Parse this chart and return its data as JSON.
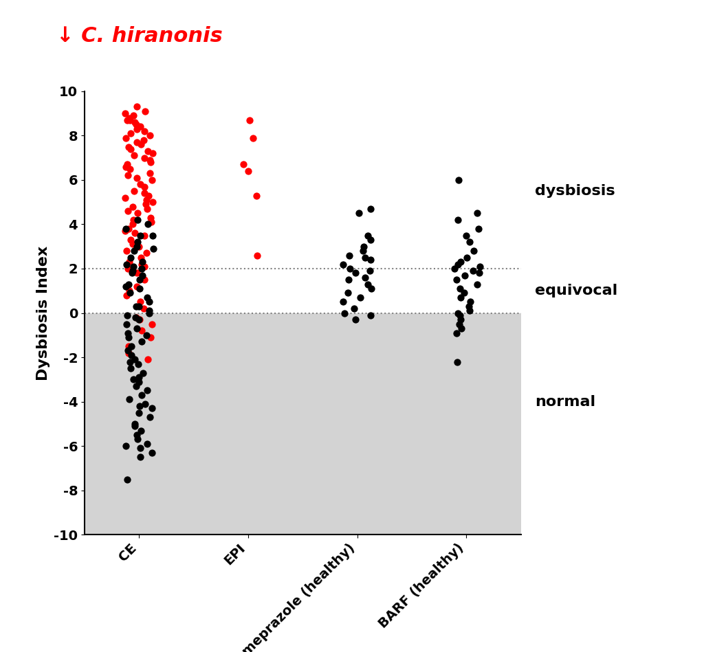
{
  "title": "↓ C. hiranonis",
  "title_color": "#ff0000",
  "ylabel": "Dysbiosis Index",
  "categories": [
    "CE",
    "EPI",
    "omeprazole (healthy)",
    "BARF (healthy)"
  ],
  "background_color": "#d3d3d3",
  "ylim": [
    -10,
    10
  ],
  "CE_red": [
    9.3,
    9.1,
    9.0,
    8.9,
    8.8,
    8.7,
    8.7,
    8.6,
    8.5,
    8.4,
    8.3,
    8.2,
    8.1,
    8.0,
    7.9,
    7.8,
    7.7,
    7.6,
    7.5,
    7.4,
    7.3,
    7.2,
    7.1,
    7.0,
    6.9,
    6.8,
    6.7,
    6.6,
    6.5,
    6.3,
    6.2,
    6.1,
    6.0,
    5.8,
    5.7,
    5.5,
    5.4,
    5.3,
    5.2,
    5.1,
    5.0,
    4.9,
    4.8,
    4.7,
    4.6,
    4.5,
    4.3,
    4.2,
    4.0,
    3.8,
    3.7,
    3.5,
    3.3,
    3.1,
    3.0,
    2.8,
    2.5,
    2.3,
    2.2,
    2.1,
    2.0,
    1.8,
    1.5,
    1.2,
    0.8,
    0.5,
    0.2,
    -0.3,
    -0.5,
    -0.8,
    -1.1,
    -1.5,
    -1.8,
    -2.1,
    -0.2,
    1.0,
    4.1,
    3.6,
    2.7
  ],
  "CE_black": [
    4.2,
    3.8,
    3.5,
    3.2,
    3.0,
    2.8,
    2.5,
    2.3,
    2.1,
    1.9,
    1.7,
    1.5,
    1.3,
    1.1,
    0.9,
    0.7,
    0.5,
    0.3,
    0.1,
    -0.1,
    -0.3,
    -0.5,
    -0.7,
    -0.9,
    -1.1,
    -1.3,
    -1.5,
    -1.7,
    -1.9,
    -2.1,
    -2.3,
    -2.5,
    -2.7,
    -2.9,
    -3.1,
    -3.3,
    -3.5,
    -3.7,
    -3.9,
    -4.1,
    -4.3,
    -4.5,
    -4.7,
    -5.0,
    -5.3,
    -5.5,
    -5.7,
    -5.9,
    -6.1,
    -6.3,
    -6.5,
    -7.5,
    -0.2,
    0.0,
    0.3,
    1.2,
    1.8,
    2.2,
    2.9,
    3.5,
    4.0,
    2.0,
    -1.0,
    -2.2,
    -3.0,
    -4.2,
    -5.1,
    -6.0
  ],
  "EPI_red": [
    8.7,
    7.9,
    6.7,
    6.4,
    5.3,
    2.6
  ],
  "EPI_black": [],
  "omeprazole_black": [
    4.7,
    4.5,
    3.3,
    3.0,
    2.8,
    2.6,
    2.4,
    2.2,
    2.0,
    1.8,
    1.6,
    1.5,
    1.3,
    1.1,
    0.9,
    0.7,
    0.5,
    0.2,
    0.0,
    -0.1,
    -0.3,
    1.9,
    2.5,
    3.5
  ],
  "BARF_black": [
    6.0,
    4.5,
    4.2,
    3.8,
    3.5,
    3.2,
    2.8,
    2.5,
    2.3,
    2.2,
    2.0,
    1.9,
    1.7,
    1.5,
    1.3,
    1.1,
    0.9,
    0.7,
    0.5,
    0.3,
    0.1,
    -0.1,
    -0.3,
    -0.5,
    -0.7,
    -0.9,
    -2.2,
    2.1,
    1.8,
    0.0
  ],
  "label_dysbiosis": "dysbiosis",
  "label_equivocal": "equivocal",
  "label_normal": "normal",
  "label_fontsize": 16,
  "tick_fontsize": 14,
  "ylabel_fontsize": 16,
  "title_fontsize": 22,
  "dot_size": 55
}
